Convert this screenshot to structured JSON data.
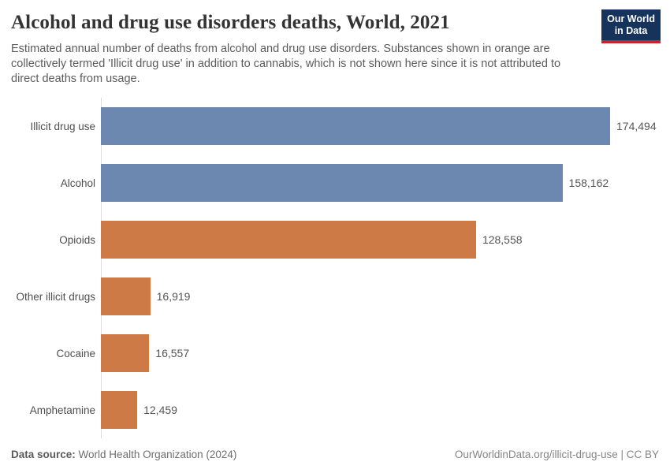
{
  "header": {
    "title": "Alcohol and drug use disorders deaths, World, 2021",
    "subtitle": "Estimated annual number of deaths from alcohol and drug use disorders. Substances shown in orange are collectively termed 'Illicit drug use' in addition to cannabis, which is not shown here since it is not attributed to direct deaths from usage.",
    "logo_line1": "Our World",
    "logo_line2": "in Data"
  },
  "chart_data": {
    "type": "bar",
    "orientation": "horizontal",
    "title": "Alcohol and drug use disorders deaths, World, 2021",
    "categories": [
      "Illicit drug use",
      "Alcohol",
      "Opioids",
      "Other illicit drugs",
      "Cocaine",
      "Amphetamine"
    ],
    "values": [
      174494,
      158162,
      128558,
      16919,
      16557,
      12459
    ],
    "value_labels": [
      "174,494",
      "158,162",
      "128,558",
      "16,919",
      "16,557",
      "12,459"
    ],
    "bar_colors": [
      "#6d88b0",
      "#6d88b0",
      "#ce7a47",
      "#ce7a47",
      "#ce7a47",
      "#ce7a47"
    ],
    "xlim": [
      0,
      174494
    ],
    "grid": false,
    "legend": false
  },
  "footer": {
    "datasource_label": "Data source:",
    "datasource_value": "World Health Organization (2024)",
    "attribution": "OurWorldinData.org/illicit-drug-use | CC BY"
  },
  "colors": {
    "blue": "#6d88b0",
    "orange": "#ce7a47",
    "logo_navy": "#16335b",
    "logo_red": "#c0292f",
    "axis_line": "#dcdcdc"
  }
}
